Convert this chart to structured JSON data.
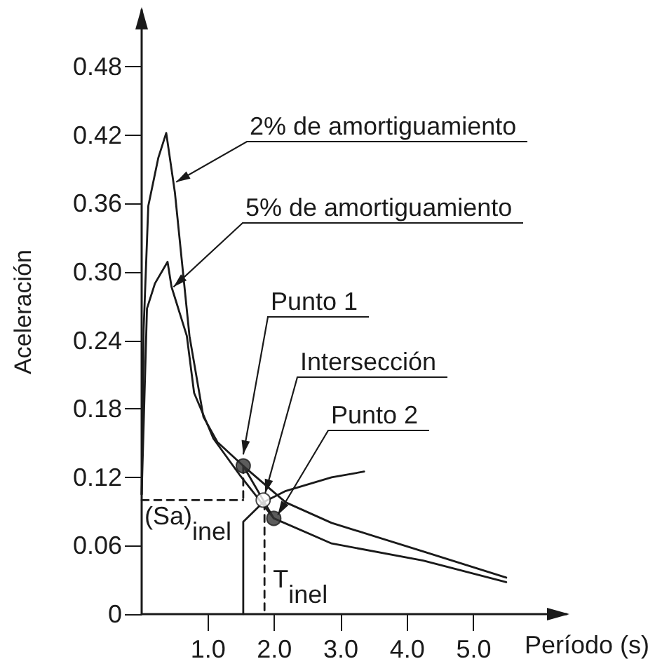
{
  "chart_data": {
    "type": "line",
    "xlabel": "Período (s)",
    "ylabel": "Aceleración",
    "xlim": [
      0,
      6.4
    ],
    "ylim": [
      0,
      0.53
    ],
    "xticks": [
      {
        "value": 1,
        "label": "1.0"
      },
      {
        "value": 2,
        "label": "2.0"
      },
      {
        "value": 3,
        "label": "3.0"
      },
      {
        "value": 4,
        "label": "4.0"
      },
      {
        "value": 5,
        "label": "5.0"
      }
    ],
    "yticks": [
      0,
      0.06,
      0.12,
      0.18,
      0.24,
      {
        "value": 0.3,
        "label": "0.30"
      },
      0.36,
      0.42,
      0.48
    ],
    "grid": false,
    "marker": "none",
    "line_style": "solid",
    "series": [
      {
        "color": "#1a1a1a",
        "x": [
          0,
          0.03,
          0.1,
          0.25,
          0.37,
          0.5,
          0.72,
          0.93,
          1.14,
          1.53,
          2.17,
          2.86,
          4.24,
          5.49
        ],
        "values": [
          0.105,
          0.25,
          0.358,
          0.4,
          0.422,
          0.37,
          0.244,
          0.173,
          0.151,
          0.13,
          0.098,
          0.08,
          0.055,
          0.032
        ]
      },
      {
        "color": "#1a1a1a",
        "x": [
          0,
          0.08,
          0.2,
          0.39,
          0.45,
          0.68,
          0.79,
          1.08,
          1.49,
          1.99,
          2.86,
          4.24,
          5.49
        ],
        "values": [
          0.105,
          0.268,
          0.29,
          0.309,
          0.287,
          0.244,
          0.194,
          0.154,
          0.121,
          0.084,
          0.062,
          0.047,
          0.028
        ]
      },
      {
        "color": "#1a1a1a",
        "x": [
          1.53,
          1.53,
          1.83,
          2.17,
          2.86,
          3.35
        ],
        "values": [
          0,
          0.081,
          0.098,
          0.108,
          0.12,
          0.125
        ]
      },
      {
        "color": "#1a1a1a",
        "x": [
          1.53,
          1.99
        ],
        "values": [
          0.13,
          0.084
        ]
      },
      {
        "color": "#1a1a1a",
        "line_style": "dashed",
        "x": [
          0,
          1.53
        ],
        "values": [
          0.1,
          0.1
        ]
      },
      {
        "color": "#1a1a1a",
        "line_style": "dashed",
        "x": [
          1.53,
          1.53
        ],
        "values": [
          0.13,
          0.1
        ]
      },
      {
        "color": "#1a1a1a",
        "line_style": "dashed",
        "x": [
          1.85,
          1.85
        ],
        "values": [
          0.098,
          0
        ]
      },
      {
        "type": "scatter",
        "marker": "circle",
        "color": "#333333",
        "x": [
          1.53,
          1.99
        ],
        "values": [
          0.13,
          0.084
        ]
      },
      {
        "type": "scatter",
        "marker": "circle",
        "color": "#ffffff",
        "x": [
          1.83
        ],
        "values": [
          0.1
        ]
      }
    ],
    "annotations": [
      {
        "text": "2% de amortiguamiento",
        "x": 0.52,
        "y": 0.379
      },
      {
        "text": "5% de amortiguamiento",
        "x": 0.48,
        "y": 0.287
      },
      {
        "text": "Punto 1",
        "x": 1.53,
        "y": 0.14
      },
      {
        "text": "Intersección",
        "x": 1.86,
        "y": 0.106
      },
      {
        "text": "Punto 2",
        "x": 2.05,
        "y": 0.087
      },
      {
        "text": "(Sa)$_{inel}$",
        "x": 0,
        "y": 0.1
      },
      {
        "text": "T$_{inel}$",
        "x": 1.85,
        "y": 0
      }
    ]
  }
}
